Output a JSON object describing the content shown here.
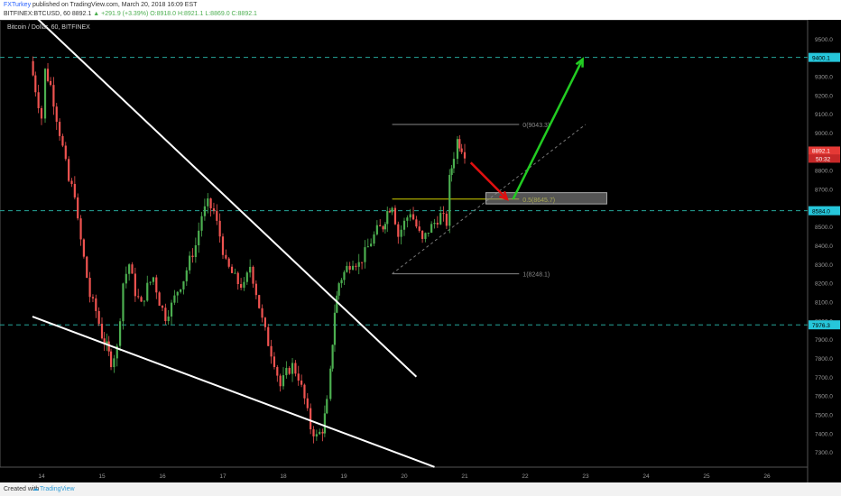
{
  "header": {
    "author": "FXTurkey",
    "published": "published on TradingView.com, March 20, 2018 16:09 EST",
    "symbol": "BITFINEX:BTCUSD, 60",
    "last": "8892.1",
    "change": "+291.9 (+3.39%)",
    "ohlc": "O:8918.0 H:8921.1 L:8869.0 C:8892.1"
  },
  "legend": "Bitcoin / Dollar, 60, BITFINEX",
  "footer": {
    "created": "Created with",
    "brand": "TradingView"
  },
  "colors": {
    "background": "#000000",
    "up": "#4caf50",
    "down": "#ef5350",
    "level_line": "#26a69a",
    "trendline": "#ffffff",
    "fib": "#d4d400",
    "arrow_down": "#e01010",
    "arrow_up": "#22cc22"
  },
  "chart_data": {
    "type": "candlestick",
    "x_ticks": [
      "14",
      "15",
      "16",
      "17",
      "18",
      "19",
      "20",
      "21",
      "22",
      "23",
      "24",
      "25",
      "26"
    ],
    "y_ticks": [
      "9600.0",
      "9500.0",
      "9400.0",
      "9300.0",
      "9200.0",
      "9100.0",
      "9000.0",
      "8900.0",
      "8800.0",
      "8700.0",
      "8600.0",
      "8500.0",
      "8400.0",
      "8300.0",
      "8200.0",
      "8100.0",
      "8000.0",
      "7900.0",
      "7800.0",
      "7700.0",
      "7600.0",
      "7500.0",
      "7400.0",
      "7300.0",
      "7200.0"
    ],
    "ylim": [
      7160,
      9650
    ],
    "xlim": [
      13.8,
      26.6
    ],
    "price_path": [
      [
        13.82,
        9380
      ],
      [
        13.9,
        9230
      ],
      [
        14.0,
        9080
      ],
      [
        14.06,
        9330
      ],
      [
        14.15,
        9250
      ],
      [
        14.25,
        9080
      ],
      [
        14.35,
        8920
      ],
      [
        14.45,
        8740
      ],
      [
        14.55,
        8680
      ],
      [
        14.6,
        8520
      ],
      [
        14.7,
        8330
      ],
      [
        14.8,
        8130
      ],
      [
        14.9,
        8050
      ],
      [
        15.0,
        7920
      ],
      [
        15.08,
        7860
      ],
      [
        15.15,
        7780
      ],
      [
        15.25,
        7850
      ],
      [
        15.35,
        8200
      ],
      [
        15.45,
        8300
      ],
      [
        15.55,
        8150
      ],
      [
        15.65,
        8080
      ],
      [
        15.75,
        8180
      ],
      [
        15.85,
        8230
      ],
      [
        15.95,
        8100
      ],
      [
        16.05,
        8020
      ],
      [
        16.15,
        8080
      ],
      [
        16.25,
        8160
      ],
      [
        16.35,
        8220
      ],
      [
        16.45,
        8320
      ],
      [
        16.55,
        8400
      ],
      [
        16.65,
        8560
      ],
      [
        16.75,
        8620
      ],
      [
        16.85,
        8580
      ],
      [
        16.95,
        8450
      ],
      [
        17.05,
        8300
      ],
      [
        17.15,
        8250
      ],
      [
        17.25,
        8200
      ],
      [
        17.35,
        8180
      ],
      [
        17.45,
        8290
      ],
      [
        17.55,
        8150
      ],
      [
        17.65,
        8000
      ],
      [
        17.75,
        7880
      ],
      [
        17.85,
        7780
      ],
      [
        17.95,
        7650
      ],
      [
        18.05,
        7720
      ],
      [
        18.15,
        7760
      ],
      [
        18.25,
        7700
      ],
      [
        18.35,
        7580
      ],
      [
        18.45,
        7430
      ],
      [
        18.55,
        7380
      ],
      [
        18.65,
        7420
      ],
      [
        18.72,
        7560
      ],
      [
        18.78,
        7720
      ],
      [
        18.85,
        8050
      ],
      [
        18.92,
        8200
      ],
      [
        19.05,
        8280
      ],
      [
        19.15,
        8320
      ],
      [
        19.25,
        8300
      ],
      [
        19.35,
        8360
      ],
      [
        19.45,
        8420
      ],
      [
        19.55,
        8480
      ],
      [
        19.65,
        8500
      ],
      [
        19.72,
        8580
      ],
      [
        19.8,
        8620
      ],
      [
        19.9,
        8450
      ],
      [
        20.0,
        8520
      ],
      [
        20.1,
        8580
      ],
      [
        20.2,
        8500
      ],
      [
        20.3,
        8420
      ],
      [
        20.4,
        8480
      ],
      [
        20.5,
        8520
      ],
      [
        20.6,
        8560
      ],
      [
        20.7,
        8520
      ],
      [
        20.75,
        8750
      ],
      [
        20.82,
        8880
      ],
      [
        20.88,
        8960
      ],
      [
        20.95,
        8920
      ],
      [
        21.0,
        8892.1
      ]
    ],
    "horizontal_levels": [
      {
        "price": 9400.1,
        "label": "9400.1"
      },
      {
        "price": 8584.0,
        "label": "8584.0"
      },
      {
        "price": 7976.3,
        "label": "7976.3"
      }
    ],
    "current_price": {
      "price": 8892.1,
      "label": "8892.1",
      "countdown": "50:32"
    },
    "fibonacci": [
      {
        "ratio": "0",
        "price": 9043.3,
        "label": "0(9043.3)"
      },
      {
        "ratio": "0.5",
        "price": 8645.7,
        "label": "0.5(8645.7)"
      },
      {
        "ratio": "1",
        "price": 8248.1,
        "label": "1(8248.1)"
      }
    ],
    "fib_range": [
      19.8,
      21.9
    ],
    "trendlines": [
      {
        "from": [
          13.82,
          9640
        ],
        "to": [
          20.2,
          7700
        ]
      },
      {
        "from": [
          13.85,
          8020
        ],
        "to": [
          20.5,
          7220
        ]
      }
    ],
    "fib_diagonal": {
      "from": [
        19.8,
        8248.1
      ],
      "to": [
        23.0,
        9043.3
      ]
    },
    "target_zone": {
      "x_from": 21.35,
      "x_to": 23.35,
      "y_from": 8620,
      "y_to": 8680
    },
    "arrow_down": {
      "from": [
        21.1,
        8840
      ],
      "to": [
        21.7,
        8645.7
      ]
    },
    "arrow_up": {
      "from": [
        21.8,
        8645.7
      ],
      "to": [
        22.95,
        9390
      ]
    }
  }
}
